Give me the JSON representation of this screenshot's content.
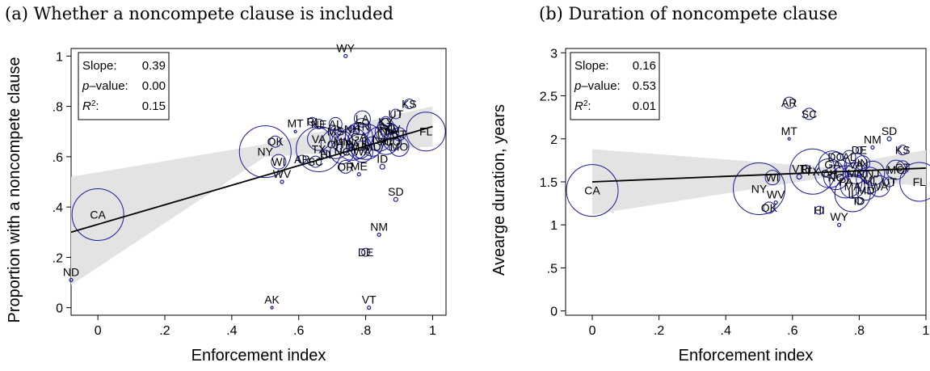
{
  "chart_data": [
    {
      "type": "scatter",
      "panel_title": "(a) Whether a noncompete clause is included",
      "xlabel": "Enforcement index",
      "ylabel": "Proportion with a noncompete clause",
      "xlim": [
        -0.08,
        1.04
      ],
      "ylim": [
        -0.03,
        1.03
      ],
      "x_ticks": [
        0,
        0.2,
        0.4,
        0.6,
        0.8,
        1
      ],
      "x_tick_labels": [
        "0",
        ".2",
        ".4",
        ".6",
        ".8",
        "1"
      ],
      "y_ticks": [
        0,
        0.2,
        0.4,
        0.6,
        0.8,
        1
      ],
      "y_tick_labels": [
        "0",
        ".2",
        ".4",
        ".6",
        ".8",
        "1"
      ],
      "marker_color": "#1a1a9c",
      "ci_color": "#e3e3e3",
      "fit": {
        "x": [
          -0.08,
          1.0
        ],
        "y": [
          0.3,
          0.72
        ]
      },
      "ci_band": {
        "x": [
          -0.08,
          0.5,
          1.0
        ],
        "lower": [
          0.09,
          0.6,
          0.64
        ],
        "upper": [
          0.52,
          0.65,
          0.8
        ]
      },
      "stats": {
        "slope_label": "Slope:",
        "slope_value": "0.39",
        "p_label_italic": "p",
        "p_label_rest": "–value:",
        "p_value": "0.00",
        "r2_label_italic": "R",
        "r2_label_sup": "2",
        "r2_label_rest": ":",
        "r2_value": "0.15"
      },
      "points": [
        {
          "label": "CA",
          "x": 0.0,
          "y": 0.37,
          "r": 32
        },
        {
          "label": "ND",
          "x": -0.08,
          "y": 0.11,
          "r": 2
        },
        {
          "label": "AK",
          "x": 0.52,
          "y": 0.0,
          "r": 1.5
        },
        {
          "label": "VT",
          "x": 0.81,
          "y": 0.0,
          "r": 2
        },
        {
          "label": "WY",
          "x": 0.74,
          "y": 1.0,
          "r": 2
        },
        {
          "label": "DE",
          "x": 0.8,
          "y": 0.22,
          "r": 5
        },
        {
          "label": "NM",
          "x": 0.84,
          "y": 0.29,
          "r": 2
        },
        {
          "label": "SD",
          "x": 0.89,
          "y": 0.43,
          "r": 2.5
        },
        {
          "label": "KS",
          "x": 0.93,
          "y": 0.81,
          "r": 6
        },
        {
          "label": "UT",
          "x": 0.89,
          "y": 0.77,
          "r": 6
        },
        {
          "label": "KY",
          "x": 0.86,
          "y": 0.74,
          "r": 6
        },
        {
          "label": "NY",
          "x": 0.5,
          "y": 0.62,
          "r": 32
        },
        {
          "label": "OK",
          "x": 0.53,
          "y": 0.66,
          "r": 7
        },
        {
          "label": "WI",
          "x": 0.54,
          "y": 0.58,
          "r": 9
        },
        {
          "label": "WV",
          "x": 0.55,
          "y": 0.5,
          "r": 2
        },
        {
          "label": "MT",
          "x": 0.59,
          "y": 0.7,
          "r": 1.5
        },
        {
          "label": "AR",
          "x": 0.61,
          "y": 0.59,
          "r": 5
        },
        {
          "label": "SC",
          "x": 0.65,
          "y": 0.58,
          "r": 7
        },
        {
          "label": "RI",
          "x": 0.64,
          "y": 0.74,
          "r": 5
        },
        {
          "label": "NE",
          "x": 0.66,
          "y": 0.73,
          "r": 6
        },
        {
          "label": "VA",
          "x": 0.66,
          "y": 0.67,
          "r": 14
        },
        {
          "label": "TX",
          "x": 0.66,
          "y": 0.63,
          "r": 28
        },
        {
          "label": "HI",
          "x": 0.68,
          "y": 0.61,
          "r": 5
        },
        {
          "label": "OH",
          "x": 0.71,
          "y": 0.65,
          "r": 18
        },
        {
          "label": "MS",
          "x": 0.71,
          "y": 0.7,
          "r": 7
        },
        {
          "label": "AL",
          "x": 0.71,
          "y": 0.73,
          "r": 8
        },
        {
          "label": "MN",
          "x": 0.73,
          "y": 0.66,
          "r": 13
        },
        {
          "label": "NC",
          "x": 0.73,
          "y": 0.62,
          "r": 15
        },
        {
          "label": "OR",
          "x": 0.74,
          "y": 0.56,
          "r": 8
        },
        {
          "label": "ME",
          "x": 0.78,
          "y": 0.53,
          "r": 2
        },
        {
          "label": "TN",
          "x": 0.79,
          "y": 0.72,
          "r": 10
        },
        {
          "label": "LA",
          "x": 0.79,
          "y": 0.75,
          "r": 10
        },
        {
          "label": "GA",
          "x": 0.78,
          "y": 0.68,
          "r": 17
        },
        {
          "label": "MA",
          "x": 0.78,
          "y": 0.64,
          "r": 15
        },
        {
          "label": "WA",
          "x": 0.79,
          "y": 0.62,
          "r": 13
        },
        {
          "label": "PA",
          "x": 0.76,
          "y": 0.65,
          "r": 20
        },
        {
          "label": "IL",
          "x": 0.8,
          "y": 0.66,
          "r": 22
        },
        {
          "label": "MD",
          "x": 0.82,
          "y": 0.64,
          "r": 12
        },
        {
          "label": "NJ",
          "x": 0.84,
          "y": 0.67,
          "r": 15
        },
        {
          "label": "IN",
          "x": 0.85,
          "y": 0.7,
          "r": 9
        },
        {
          "label": "ID",
          "x": 0.85,
          "y": 0.56,
          "r": 3
        },
        {
          "label": "MI",
          "x": 0.86,
          "y": 0.66,
          "r": 16
        },
        {
          "label": "AZ",
          "x": 0.86,
          "y": 0.72,
          "r": 10
        },
        {
          "label": "NV",
          "x": 0.88,
          "y": 0.71,
          "r": 6
        },
        {
          "label": "IA",
          "x": 0.88,
          "y": 0.7,
          "r": 8
        },
        {
          "label": "CO",
          "x": 0.88,
          "y": 0.66,
          "r": 11
        },
        {
          "label": "CT",
          "x": 0.9,
          "y": 0.69,
          "r": 8
        },
        {
          "label": "MO",
          "x": 0.9,
          "y": 0.64,
          "r": 12
        },
        {
          "label": "FL",
          "x": 0.98,
          "y": 0.7,
          "r": 24
        },
        {
          "label": "NH",
          "x": 0.76,
          "y": 0.71,
          "r": 4
        }
      ]
    },
    {
      "type": "scatter",
      "panel_title": "(b) Duration of noncompete clause",
      "xlabel": "Enforcement index",
      "ylabel": "Avearge duration, years",
      "xlim": [
        -0.08,
        1.0
      ],
      "ylim": [
        -0.05,
        3.05
      ],
      "x_ticks": [
        0,
        0.2,
        0.4,
        0.6,
        0.8,
        1
      ],
      "x_tick_labels": [
        "0",
        ".2",
        ".4",
        ".6",
        ".8",
        "1"
      ],
      "y_ticks": [
        0,
        0.5,
        1,
        1.5,
        2,
        2.5,
        3
      ],
      "y_tick_labels": [
        "0",
        ".5",
        "1",
        "1.5",
        "2",
        "2.5",
        "3"
      ],
      "marker_color": "#1a1a9c",
      "ci_color": "#e3e3e3",
      "fit": {
        "x": [
          0.0,
          1.0
        ],
        "y": [
          1.5,
          1.66
        ]
      },
      "ci_band": {
        "x": [
          0.0,
          0.7,
          1.0
        ],
        "lower": [
          1.12,
          1.55,
          1.45
        ],
        "upper": [
          1.88,
          1.67,
          1.87
        ]
      },
      "stats": {
        "slope_label": "Slope:",
        "slope_value": "0.16",
        "p_label_italic": "p",
        "p_label_rest": "–value:",
        "p_value": "0.53",
        "r2_label_italic": "R",
        "r2_label_sup": "2",
        "r2_label_rest": ":",
        "r2_value": "0.01"
      },
      "points": [
        {
          "label": "CA",
          "x": 0.0,
          "y": 1.4,
          "r": 32
        },
        {
          "label": "AR",
          "x": 0.59,
          "y": 2.42,
          "r": 7
        },
        {
          "label": "SC",
          "x": 0.65,
          "y": 2.29,
          "r": 7
        },
        {
          "label": "MT",
          "x": 0.59,
          "y": 2.0,
          "r": 1.5
        },
        {
          "label": "DE",
          "x": 0.8,
          "y": 1.87,
          "r": 4
        },
        {
          "label": "SD",
          "x": 0.89,
          "y": 2.0,
          "r": 2.5
        },
        {
          "label": "KS",
          "x": 0.93,
          "y": 1.87,
          "r": 6
        },
        {
          "label": "NM",
          "x": 0.84,
          "y": 1.9,
          "r": 2
        },
        {
          "label": "WI",
          "x": 0.54,
          "y": 1.55,
          "r": 9
        },
        {
          "label": "NY",
          "x": 0.5,
          "y": 1.42,
          "r": 32
        },
        {
          "label": "OK",
          "x": 0.53,
          "y": 1.2,
          "r": 7
        },
        {
          "label": "WV",
          "x": 0.55,
          "y": 1.26,
          "r": 2
        },
        {
          "label": "HI",
          "x": 0.68,
          "y": 1.17,
          "r": 5
        },
        {
          "label": "WY",
          "x": 0.74,
          "y": 1.0,
          "r": 2
        },
        {
          "label": "RI",
          "x": 0.64,
          "y": 1.65,
          "r": 5
        },
        {
          "label": "VT",
          "x": 0.62,
          "y": 1.56,
          "r": 3
        },
        {
          "label": "TX",
          "x": 0.66,
          "y": 1.62,
          "r": 28
        },
        {
          "label": "DC",
          "x": 0.73,
          "y": 1.79,
          "r": 6
        },
        {
          "label": "AL",
          "x": 0.77,
          "y": 1.79,
          "r": 8
        },
        {
          "label": "GA",
          "x": 0.72,
          "y": 1.7,
          "r": 17
        },
        {
          "label": "OH",
          "x": 0.71,
          "y": 1.6,
          "r": 18
        },
        {
          "label": "NC",
          "x": 0.73,
          "y": 1.55,
          "r": 15
        },
        {
          "label": "PA",
          "x": 0.76,
          "y": 1.5,
          "r": 20
        },
        {
          "label": "IL",
          "x": 0.78,
          "y": 1.36,
          "r": 22
        },
        {
          "label": "MA",
          "x": 0.78,
          "y": 1.45,
          "r": 15
        },
        {
          "label": "ID",
          "x": 0.8,
          "y": 1.28,
          "r": 4
        },
        {
          "label": "MN",
          "x": 0.79,
          "y": 1.6,
          "r": 13
        },
        {
          "label": "IN",
          "x": 0.81,
          "y": 1.72,
          "r": 9
        },
        {
          "label": "VA",
          "x": 0.79,
          "y": 1.7,
          "r": 14
        },
        {
          "label": "NJ",
          "x": 0.84,
          "y": 1.6,
          "r": 15
        },
        {
          "label": "MI",
          "x": 0.83,
          "y": 1.52,
          "r": 16
        },
        {
          "label": "WA",
          "x": 0.86,
          "y": 1.45,
          "r": 13
        },
        {
          "label": "MD",
          "x": 0.82,
          "y": 1.4,
          "r": 12
        },
        {
          "label": "UT",
          "x": 0.89,
          "y": 1.5,
          "r": 6
        },
        {
          "label": "MO",
          "x": 0.91,
          "y": 1.64,
          "r": 12
        },
        {
          "label": "CT",
          "x": 0.93,
          "y": 1.67,
          "r": 8
        },
        {
          "label": "FL",
          "x": 0.98,
          "y": 1.5,
          "r": 24
        }
      ]
    }
  ]
}
